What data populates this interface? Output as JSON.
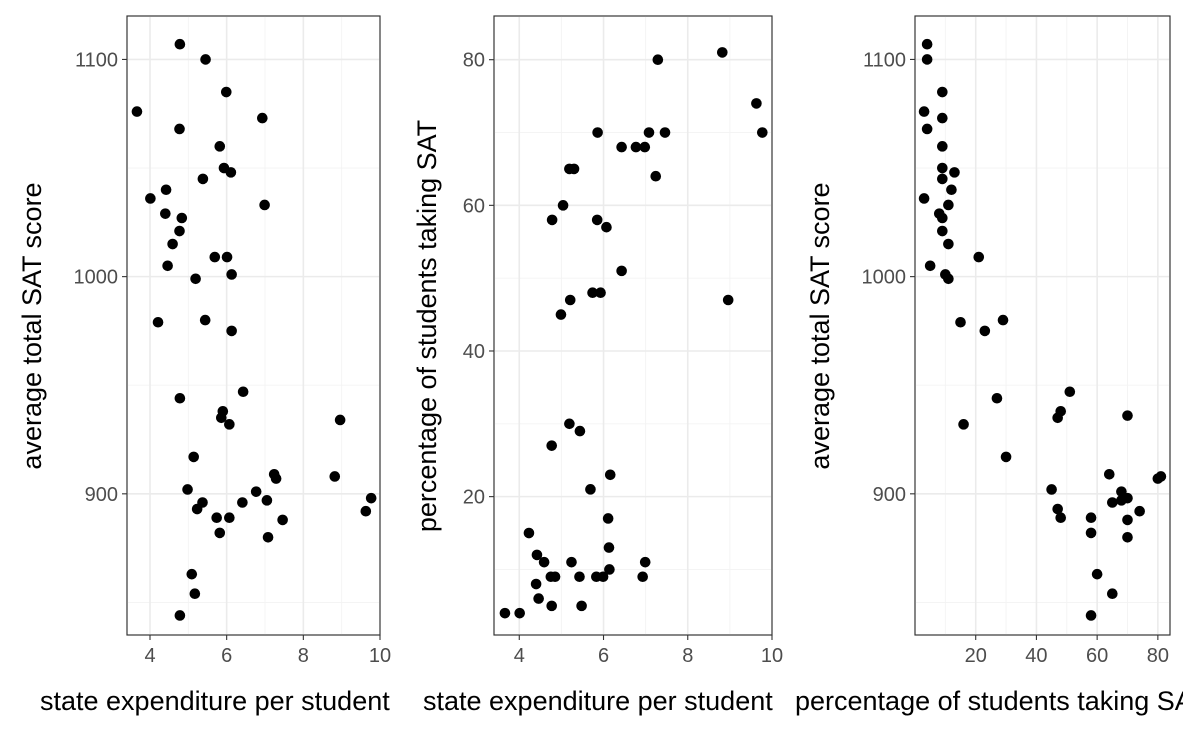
{
  "chart_data": [
    {
      "type": "scatter",
      "xlabel": "state expenditure per student",
      "ylabel": "average total SAT score",
      "xlim": [
        3.4,
        10.0
      ],
      "ylim": [
        835,
        1120
      ],
      "x_major_ticks": [
        4,
        6,
        8,
        10
      ],
      "y_major_ticks": [
        900,
        1000,
        1100
      ],
      "grid": "on",
      "points": [
        {
          "x": 3.66,
          "y": 1076
        },
        {
          "x": 4.78,
          "y": 1107
        },
        {
          "x": 5.45,
          "y": 1100
        },
        {
          "x": 5.99,
          "y": 1085
        },
        {
          "x": 6.93,
          "y": 1073
        },
        {
          "x": 4.77,
          "y": 1068
        },
        {
          "x": 5.82,
          "y": 1060
        },
        {
          "x": 5.93,
          "y": 1050
        },
        {
          "x": 6.11,
          "y": 1048
        },
        {
          "x": 5.38,
          "y": 1045
        },
        {
          "x": 4.42,
          "y": 1040
        },
        {
          "x": 4.01,
          "y": 1036
        },
        {
          "x": 6.99,
          "y": 1033
        },
        {
          "x": 4.4,
          "y": 1029
        },
        {
          "x": 4.83,
          "y": 1027
        },
        {
          "x": 4.77,
          "y": 1021
        },
        {
          "x": 4.59,
          "y": 1015
        },
        {
          "x": 6.01,
          "y": 1009
        },
        {
          "x": 5.69,
          "y": 1009
        },
        {
          "x": 4.46,
          "y": 1005
        },
        {
          "x": 6.13,
          "y": 1001
        },
        {
          "x": 5.19,
          "y": 999
        },
        {
          "x": 4.21,
          "y": 979
        },
        {
          "x": 5.44,
          "y": 980
        },
        {
          "x": 6.13,
          "y": 975
        },
        {
          "x": 6.43,
          "y": 947
        },
        {
          "x": 4.78,
          "y": 944
        },
        {
          "x": 5.9,
          "y": 938
        },
        {
          "x": 5.86,
          "y": 935
        },
        {
          "x": 8.96,
          "y": 934
        },
        {
          "x": 6.07,
          "y": 932
        },
        {
          "x": 5.14,
          "y": 917
        },
        {
          "x": 7.24,
          "y": 909
        },
        {
          "x": 7.29,
          "y": 907
        },
        {
          "x": 8.82,
          "y": 908
        },
        {
          "x": 4.98,
          "y": 902
        },
        {
          "x": 6.77,
          "y": 901
        },
        {
          "x": 9.77,
          "y": 898
        },
        {
          "x": 7.05,
          "y": 897
        },
        {
          "x": 6.41,
          "y": 896
        },
        {
          "x": 5.37,
          "y": 896
        },
        {
          "x": 5.23,
          "y": 893
        },
        {
          "x": 9.63,
          "y": 892
        },
        {
          "x": 6.07,
          "y": 889
        },
        {
          "x": 5.74,
          "y": 889
        },
        {
          "x": 7.46,
          "y": 888
        },
        {
          "x": 5.82,
          "y": 882
        },
        {
          "x": 7.08,
          "y": 880
        },
        {
          "x": 5.09,
          "y": 863
        },
        {
          "x": 5.17,
          "y": 854
        },
        {
          "x": 4.78,
          "y": 844
        }
      ]
    },
    {
      "type": "scatter",
      "xlabel": "state expenditure per student",
      "ylabel": "percentage of students taking SAT",
      "xlim": [
        3.4,
        10.0
      ],
      "ylim": [
        1,
        86
      ],
      "x_major_ticks": [
        4,
        6,
        8,
        10
      ],
      "y_major_ticks": [
        20,
        40,
        60,
        80
      ],
      "grid": "on",
      "points": [
        {
          "x": 8.82,
          "y": 81
        },
        {
          "x": 7.29,
          "y": 80
        },
        {
          "x": 9.63,
          "y": 74
        },
        {
          "x": 5.86,
          "y": 70
        },
        {
          "x": 7.08,
          "y": 70
        },
        {
          "x": 7.46,
          "y": 70
        },
        {
          "x": 9.77,
          "y": 70
        },
        {
          "x": 6.43,
          "y": 68
        },
        {
          "x": 6.77,
          "y": 68
        },
        {
          "x": 6.98,
          "y": 68
        },
        {
          "x": 5.19,
          "y": 65
        },
        {
          "x": 5.3,
          "y": 65
        },
        {
          "x": 7.24,
          "y": 64
        },
        {
          "x": 5.04,
          "y": 60
        },
        {
          "x": 4.78,
          "y": 58
        },
        {
          "x": 5.85,
          "y": 58
        },
        {
          "x": 6.07,
          "y": 57
        },
        {
          "x": 6.43,
          "y": 51
        },
        {
          "x": 5.74,
          "y": 48
        },
        {
          "x": 5.93,
          "y": 48
        },
        {
          "x": 5.21,
          "y": 47
        },
        {
          "x": 8.96,
          "y": 47
        },
        {
          "x": 4.99,
          "y": 45
        },
        {
          "x": 5.19,
          "y": 30
        },
        {
          "x": 5.44,
          "y": 29
        },
        {
          "x": 4.77,
          "y": 27
        },
        {
          "x": 6.16,
          "y": 23
        },
        {
          "x": 5.69,
          "y": 21
        },
        {
          "x": 6.11,
          "y": 17
        },
        {
          "x": 4.23,
          "y": 15
        },
        {
          "x": 6.13,
          "y": 13
        },
        {
          "x": 4.42,
          "y": 12
        },
        {
          "x": 4.59,
          "y": 11
        },
        {
          "x": 5.24,
          "y": 11
        },
        {
          "x": 6.99,
          "y": 11
        },
        {
          "x": 6.14,
          "y": 10
        },
        {
          "x": 4.75,
          "y": 9
        },
        {
          "x": 4.85,
          "y": 9
        },
        {
          "x": 5.43,
          "y": 9
        },
        {
          "x": 5.83,
          "y": 9
        },
        {
          "x": 5.99,
          "y": 9
        },
        {
          "x": 6.93,
          "y": 9
        },
        {
          "x": 4.4,
          "y": 8
        },
        {
          "x": 4.46,
          "y": 6
        },
        {
          "x": 4.77,
          "y": 5
        },
        {
          "x": 5.48,
          "y": 5
        },
        {
          "x": 3.66,
          "y": 4
        },
        {
          "x": 4.01,
          "y": 4
        }
      ]
    },
    {
      "type": "scatter",
      "xlabel": "percentage of students taking SAT",
      "ylabel": "average total SAT score",
      "xlim": [
        0,
        84
      ],
      "ylim": [
        835,
        1120
      ],
      "x_major_ticks": [
        20,
        40,
        60,
        80
      ],
      "y_major_ticks": [
        900,
        1000,
        1100
      ],
      "grid": "on",
      "points": [
        {
          "x": 4,
          "y": 1107
        },
        {
          "x": 4,
          "y": 1100
        },
        {
          "x": 9,
          "y": 1085
        },
        {
          "x": 3,
          "y": 1076
        },
        {
          "x": 9,
          "y": 1073
        },
        {
          "x": 4,
          "y": 1068
        },
        {
          "x": 9,
          "y": 1060
        },
        {
          "x": 9,
          "y": 1050
        },
        {
          "x": 13,
          "y": 1048
        },
        {
          "x": 9,
          "y": 1045
        },
        {
          "x": 12,
          "y": 1040
        },
        {
          "x": 3,
          "y": 1036
        },
        {
          "x": 11,
          "y": 1033
        },
        {
          "x": 8,
          "y": 1029
        },
        {
          "x": 9,
          "y": 1027
        },
        {
          "x": 9,
          "y": 1021
        },
        {
          "x": 11,
          "y": 1015
        },
        {
          "x": 21,
          "y": 1009
        },
        {
          "x": 5,
          "y": 1005
        },
        {
          "x": 10,
          "y": 1001
        },
        {
          "x": 11,
          "y": 999
        },
        {
          "x": 15,
          "y": 979
        },
        {
          "x": 29,
          "y": 980
        },
        {
          "x": 23,
          "y": 975
        },
        {
          "x": 51,
          "y": 947
        },
        {
          "x": 27,
          "y": 944
        },
        {
          "x": 48,
          "y": 938
        },
        {
          "x": 47,
          "y": 935
        },
        {
          "x": 70,
          "y": 936
        },
        {
          "x": 16,
          "y": 932
        },
        {
          "x": 30,
          "y": 917
        },
        {
          "x": 64,
          "y": 909
        },
        {
          "x": 80,
          "y": 907
        },
        {
          "x": 81,
          "y": 908
        },
        {
          "x": 45,
          "y": 902
        },
        {
          "x": 68,
          "y": 901
        },
        {
          "x": 70,
          "y": 898
        },
        {
          "x": 68,
          "y": 897
        },
        {
          "x": 65,
          "y": 896
        },
        {
          "x": 47,
          "y": 893
        },
        {
          "x": 74,
          "y": 892
        },
        {
          "x": 58,
          "y": 889
        },
        {
          "x": 48,
          "y": 889
        },
        {
          "x": 70,
          "y": 888
        },
        {
          "x": 58,
          "y": 882
        },
        {
          "x": 70,
          "y": 880
        },
        {
          "x": 60,
          "y": 863
        },
        {
          "x": 65,
          "y": 854
        },
        {
          "x": 58,
          "y": 844
        }
      ]
    }
  ]
}
